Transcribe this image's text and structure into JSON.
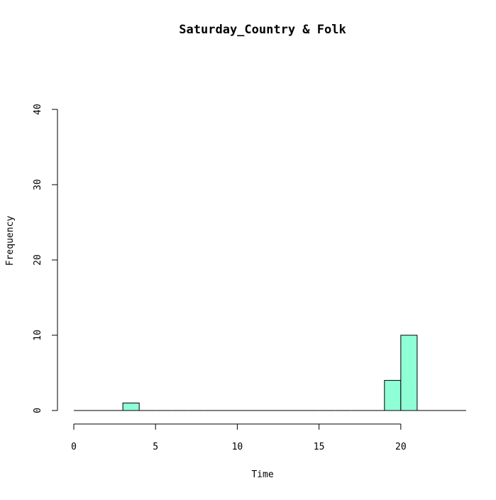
{
  "chart_data": {
    "type": "bar",
    "title": "Saturday_Country & Folk",
    "xlabel": "Time",
    "ylabel": "Frequency",
    "bin_width": 1,
    "xlim": [
      0,
      24
    ],
    "ylim": [
      0,
      40
    ],
    "x_ticks": [
      "0",
      "5",
      "10",
      "15",
      "20"
    ],
    "y_ticks": [
      "0",
      "10",
      "20",
      "30",
      "40"
    ],
    "bins": [
      {
        "start": 0,
        "end": 1,
        "count": 0
      },
      {
        "start": 1,
        "end": 2,
        "count": 0
      },
      {
        "start": 2,
        "end": 3,
        "count": 0
      },
      {
        "start": 3,
        "end": 4,
        "count": 1
      },
      {
        "start": 4,
        "end": 5,
        "count": 0
      },
      {
        "start": 5,
        "end": 6,
        "count": 0
      },
      {
        "start": 6,
        "end": 7,
        "count": 0
      },
      {
        "start": 7,
        "end": 8,
        "count": 0
      },
      {
        "start": 8,
        "end": 9,
        "count": 0
      },
      {
        "start": 9,
        "end": 10,
        "count": 0
      },
      {
        "start": 10,
        "end": 11,
        "count": 0
      },
      {
        "start": 11,
        "end": 12,
        "count": 0
      },
      {
        "start": 12,
        "end": 13,
        "count": 0
      },
      {
        "start": 13,
        "end": 14,
        "count": 0
      },
      {
        "start": 14,
        "end": 15,
        "count": 0
      },
      {
        "start": 15,
        "end": 16,
        "count": 0
      },
      {
        "start": 16,
        "end": 17,
        "count": 0
      },
      {
        "start": 17,
        "end": 18,
        "count": 0
      },
      {
        "start": 18,
        "end": 19,
        "count": 0
      },
      {
        "start": 19,
        "end": 20,
        "count": 4
      },
      {
        "start": 20,
        "end": 21,
        "count": 10
      },
      {
        "start": 21,
        "end": 22,
        "count": 0
      },
      {
        "start": 22,
        "end": 23,
        "count": 0
      },
      {
        "start": 23,
        "end": 24,
        "count": 0
      }
    ],
    "bar_color": "#8FFFD6",
    "grid": false,
    "legend": "none"
  }
}
